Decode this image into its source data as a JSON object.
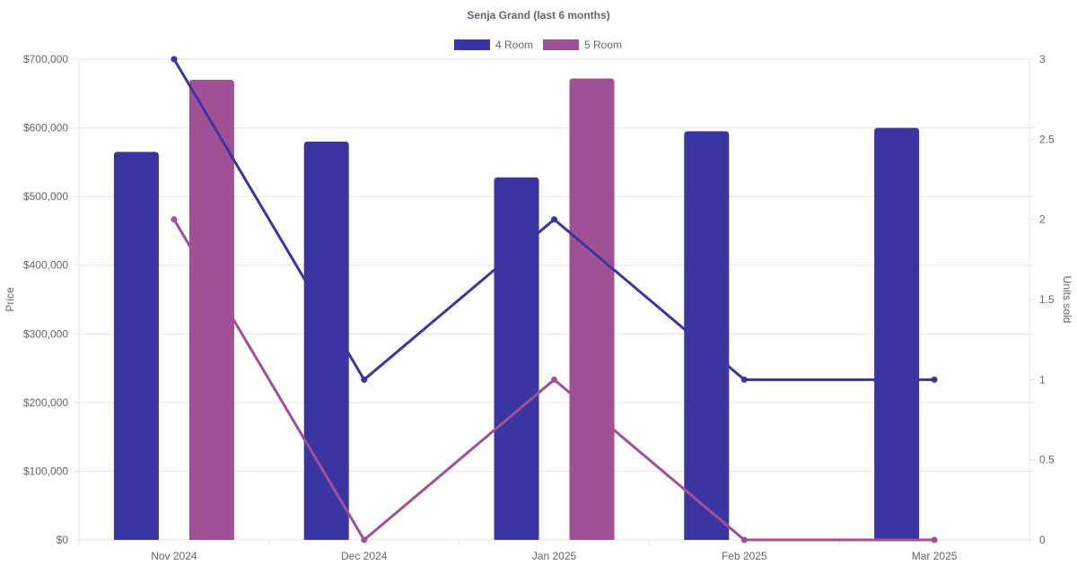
{
  "chart_data": {
    "type": "bar",
    "title": "Senja Grand (last 6 months)",
    "categories": [
      "Nov 2024",
      "Dec 2024",
      "Jan 2025",
      "Feb 2025",
      "Mar 2025"
    ],
    "y_left": {
      "label": "Price",
      "range": [
        0,
        700000
      ],
      "ticks": [
        0,
        100000,
        200000,
        300000,
        400000,
        500000,
        600000,
        700000
      ],
      "tick_labels": [
        "$0",
        "$100,000",
        "$200,000",
        "$300,000",
        "$400,000",
        "$500,000",
        "$600,000",
        "$700,000"
      ]
    },
    "y_right": {
      "label": "Units sold",
      "range": [
        0,
        3
      ],
      "ticks": [
        0,
        0.5,
        1,
        1.5,
        2,
        2.5,
        3
      ],
      "tick_labels": [
        "0",
        "0.5",
        "1",
        "1.5",
        "2",
        "2.5",
        "3"
      ]
    },
    "series": [
      {
        "name": "4 Room",
        "color": "#3a35a0",
        "bar_values": [
          565000,
          580000,
          528000,
          595000,
          600000
        ],
        "line_values": [
          3,
          1,
          2,
          1,
          1
        ]
      },
      {
        "name": "5 Room",
        "color": "#a05195",
        "bar_values": [
          670000,
          null,
          672000,
          null,
          null
        ],
        "line_values": [
          2,
          0,
          1,
          0,
          0
        ]
      }
    ],
    "legend_position": "top-center",
    "grid": true
  }
}
